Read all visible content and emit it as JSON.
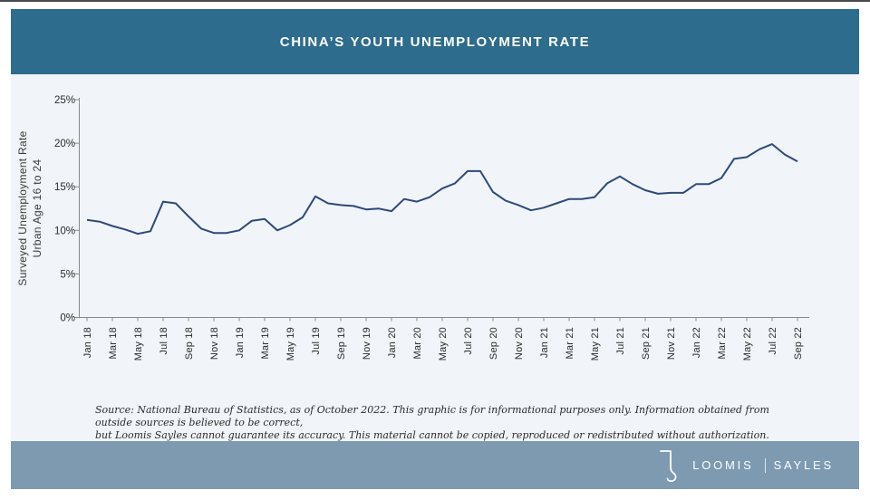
{
  "header": {
    "title": "CHINA’S YOUTH UNEMPLOYMENT RATE"
  },
  "colors": {
    "header_bar": "#2d6c8c",
    "footer_bar": "#7d9ab1",
    "line": "#2d4a78",
    "panel_background": "#f1f4f8",
    "axis": "#8a8a8a"
  },
  "chart_data": {
    "type": "line",
    "title": "CHINA’S YOUTH UNEMPLOYMENT RATE",
    "ylabel_line1": "Surveyed Unemployment Rate",
    "ylabel_line2": "Urban Age 16 to 24",
    "xlabel": "",
    "ylim": [
      0,
      25
    ],
    "grid": false,
    "legend": "none",
    "y_tick_labels": [
      "0%",
      "5%",
      "10%",
      "15%",
      "20%",
      "25%"
    ],
    "x_tick_labels": [
      "Jan 18",
      "Mar 18",
      "May 18",
      "Jul 18",
      "Sep 18",
      "Nov 18",
      "Jan 19",
      "Mar 19",
      "May 19",
      "Jul 19",
      "Sep 19",
      "Nov 19",
      "Jan 20",
      "Mar 20",
      "May 20",
      "Jul 20",
      "Sep 20",
      "Nov 20",
      "Jan 21",
      "Mar 21",
      "May 21",
      "Jul 21",
      "Sep 21",
      "Nov 21",
      "Jan 22",
      "Mar 22",
      "May 22",
      "Jul 22",
      "Sep 22"
    ],
    "x": [
      "Jan 18",
      "Feb 18",
      "Mar 18",
      "Apr 18",
      "May 18",
      "Jun 18",
      "Jul 18",
      "Aug 18",
      "Sep 18",
      "Oct 18",
      "Nov 18",
      "Dec 18",
      "Jan 19",
      "Feb 19",
      "Mar 19",
      "Apr 19",
      "May 19",
      "Jun 19",
      "Jul 19",
      "Aug 19",
      "Sep 19",
      "Oct 19",
      "Nov 19",
      "Dec 19",
      "Jan 20",
      "Feb 20",
      "Mar 20",
      "Apr 20",
      "May 20",
      "Jun 20",
      "Jul 20",
      "Aug 20",
      "Sep 20",
      "Oct 20",
      "Nov 20",
      "Dec 20",
      "Jan 21",
      "Feb 21",
      "Mar 21",
      "Apr 21",
      "May 21",
      "Jun 21",
      "Jul 21",
      "Aug 21",
      "Sep 21",
      "Oct 21",
      "Nov 21",
      "Dec 21",
      "Jan 22",
      "Feb 22",
      "Mar 22",
      "Apr 22",
      "May 22",
      "Jun 22",
      "Jul 22",
      "Aug 22",
      "Sep 22"
    ],
    "values": [
      11.2,
      11.0,
      10.5,
      10.1,
      9.6,
      9.9,
      13.3,
      13.1,
      11.6,
      10.2,
      9.7,
      9.7,
      10.0,
      11.1,
      11.3,
      10.0,
      10.6,
      11.5,
      13.9,
      13.1,
      12.9,
      12.8,
      12.4,
      12.5,
      12.2,
      13.6,
      13.3,
      13.8,
      14.8,
      15.4,
      16.8,
      16.8,
      14.4,
      13.4,
      12.9,
      12.3,
      12.6,
      13.1,
      13.6,
      13.6,
      13.8,
      15.4,
      16.2,
      15.3,
      14.6,
      14.2,
      14.3,
      14.3,
      15.3,
      15.3,
      16.0,
      18.2,
      18.4,
      19.3,
      19.9,
      18.7,
      17.9
    ]
  },
  "footer": {
    "source_line1": "Source: National Bureau of Statistics, as of October 2022. This graphic is for informational purposes only. Information obtained from outside sources is believed to be correct,",
    "source_line2": "but Loomis Sayles cannot guarantee its accuracy. This material cannot be copied, reproduced or redistributed without authorization."
  },
  "brand": {
    "monogram_icon": "ls-monogram",
    "name_left": "LOOMIS",
    "name_right": "SAYLES"
  }
}
